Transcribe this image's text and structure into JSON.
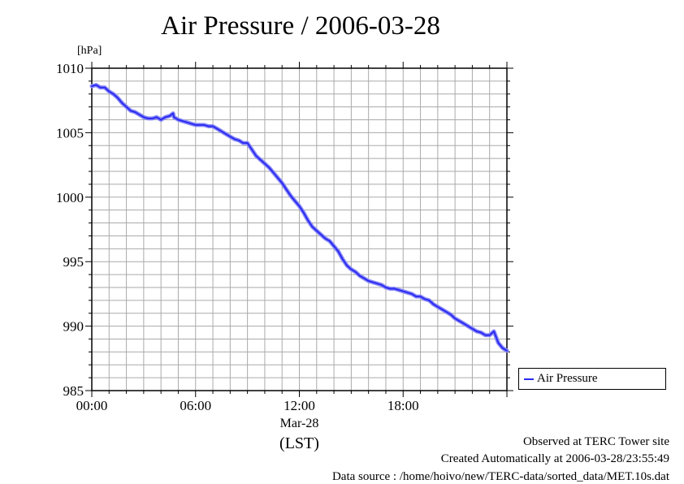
{
  "title": "Air Pressure / 2006-03-28",
  "chart_data": {
    "type": "line",
    "title": "Air Pressure / 2006-03-28",
    "ylabel": "[hPa]",
    "xlabel": "(LST)",
    "x_date_label": "Mar-28",
    "ylim": [
      985,
      1010
    ],
    "xlim": [
      0,
      24
    ],
    "yticks": [
      "985",
      "990",
      "995",
      "1000",
      "1005",
      "1010"
    ],
    "xticks": [
      "00:00",
      "06:00",
      "12:00",
      "18:00"
    ],
    "grid": true,
    "legend_position": "bottom-right outside",
    "series": [
      {
        "name": "Air Pressure",
        "color": "#2a2af0",
        "x": [
          0.0,
          0.25,
          0.5,
          0.75,
          1.0,
          1.25,
          1.5,
          1.75,
          2.0,
          2.25,
          2.5,
          2.75,
          3.0,
          3.25,
          3.5,
          3.75,
          4.0,
          4.25,
          4.5,
          4.7,
          4.75,
          5.0,
          5.25,
          5.5,
          5.75,
          6.0,
          6.25,
          6.5,
          6.75,
          7.0,
          7.25,
          7.5,
          7.75,
          8.0,
          8.25,
          8.5,
          8.75,
          9.0,
          9.25,
          9.5,
          9.75,
          10.0,
          10.25,
          10.5,
          10.75,
          11.0,
          11.25,
          11.5,
          11.75,
          12.0,
          12.25,
          12.5,
          12.75,
          13.0,
          13.25,
          13.5,
          13.75,
          14.0,
          14.25,
          14.5,
          14.75,
          15.0,
          15.25,
          15.5,
          15.75,
          16.0,
          16.25,
          16.5,
          16.75,
          17.0,
          17.25,
          17.5,
          17.75,
          18.0,
          18.25,
          18.5,
          18.75,
          19.0,
          19.25,
          19.5,
          19.75,
          20.0,
          20.25,
          20.5,
          20.75,
          21.0,
          21.25,
          21.5,
          21.75,
          22.0,
          22.25,
          22.5,
          22.75,
          23.0,
          23.25,
          23.5,
          23.75,
          24.0
        ],
        "values": [
          1008.6,
          1008.7,
          1008.5,
          1008.5,
          1008.2,
          1008.0,
          1007.7,
          1007.3,
          1007.0,
          1006.7,
          1006.6,
          1006.4,
          1006.2,
          1006.1,
          1006.1,
          1006.2,
          1006.0,
          1006.2,
          1006.3,
          1006.5,
          1006.2,
          1006.0,
          1005.9,
          1005.8,
          1005.7,
          1005.6,
          1005.6,
          1005.6,
          1005.5,
          1005.5,
          1005.3,
          1005.1,
          1004.9,
          1004.7,
          1004.5,
          1004.4,
          1004.2,
          1004.2,
          1003.7,
          1003.2,
          1002.9,
          1002.6,
          1002.3,
          1001.9,
          1001.5,
          1001.1,
          1000.6,
          1000.1,
          999.7,
          999.3,
          998.8,
          998.2,
          997.7,
          997.4,
          997.1,
          996.8,
          996.6,
          996.2,
          995.8,
          995.2,
          994.7,
          994.4,
          994.2,
          993.9,
          993.7,
          993.5,
          993.4,
          993.3,
          993.2,
          993.0,
          992.9,
          992.9,
          992.8,
          992.7,
          992.6,
          992.5,
          992.3,
          992.3,
          992.1,
          992.0,
          991.7,
          991.5,
          991.3,
          991.1,
          990.9,
          990.6,
          990.4,
          990.2,
          990.0,
          989.8,
          989.6,
          989.5,
          989.3,
          989.3,
          989.6,
          988.7,
          988.3,
          988.1
        ]
      }
    ]
  },
  "footer": {
    "observed": "Observed at TERC Tower site",
    "created": "Created Automatically at 2006-03-28/23:55:49",
    "source": "Data source : /home/hoivo/new/TERC-data/sorted_data/MET.10s.dat"
  }
}
